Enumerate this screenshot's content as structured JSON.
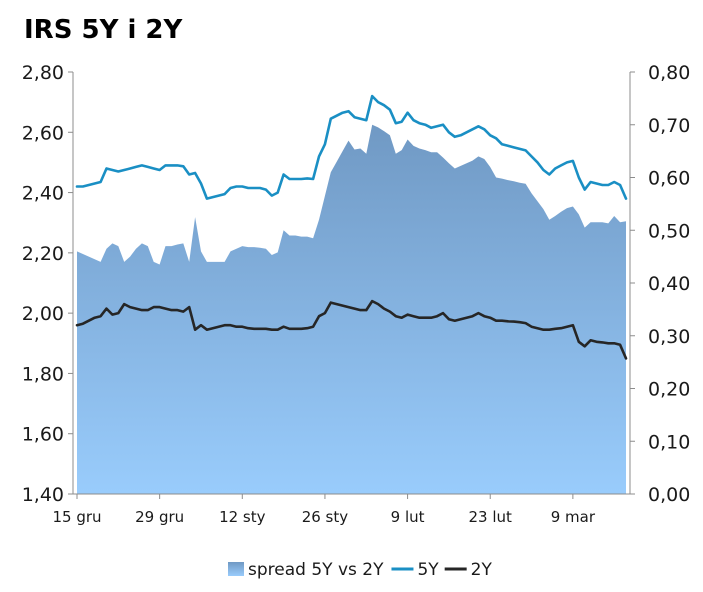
{
  "chart_data": {
    "type": "line",
    "title": "IRS 5Y i 2Y",
    "x_tick_labels": [
      "15 gru",
      "29 gru",
      "12 sty",
      "26 sty",
      "9 lut",
      "23 lut",
      "9 mar"
    ],
    "y_left": {
      "range": [
        1.4,
        2.8
      ],
      "step": 0.2,
      "tick_labels": [
        "1,40",
        "1,60",
        "1,80",
        "2,00",
        "2,20",
        "2,40",
        "2,60",
        "2,80"
      ]
    },
    "y_right": {
      "range": [
        0.0,
        0.8
      ],
      "step": 0.1,
      "tick_labels": [
        "0,00",
        "0,10",
        "0,20",
        "0,30",
        "0,40",
        "0,50",
        "0,60",
        "0,70",
        "0,80"
      ]
    },
    "grid": false,
    "legend_position": "bottom",
    "series": [
      {
        "name": "spread 5Y vs 2Y",
        "kind": "area",
        "axis": "right",
        "color": "#7099c4",
        "gradient_bottom": "#99ccfc",
        "values": [
          0.46,
          0.455,
          0.45,
          0.445,
          0.44,
          0.465,
          0.475,
          0.47,
          0.44,
          0.45,
          0.465,
          0.475,
          0.47,
          0.44,
          0.435,
          0.47,
          0.47,
          0.473,
          0.475,
          0.44,
          0.525,
          0.46,
          0.44,
          0.44,
          0.44,
          0.44,
          0.46,
          0.465,
          0.47,
          0.468,
          0.468,
          0.467,
          0.465,
          0.453,
          0.458,
          0.5,
          0.49,
          0.49,
          0.488,
          0.488,
          0.485,
          0.52,
          0.565,
          0.61,
          0.63,
          0.65,
          0.67,
          0.653,
          0.655,
          0.645,
          0.7,
          0.695,
          0.688,
          0.68,
          0.645,
          0.652,
          0.672,
          0.66,
          0.655,
          0.652,
          0.648,
          0.648,
          0.638,
          0.627,
          0.617,
          0.622,
          0.627,
          0.632,
          0.64,
          0.635,
          0.62,
          0.6,
          0.598,
          0.595,
          0.593,
          0.59,
          0.588,
          0.57,
          0.555,
          0.54,
          0.52,
          0.527,
          0.535,
          0.542,
          0.545,
          0.53,
          0.505,
          0.515,
          0.515,
          0.515,
          0.513,
          0.527,
          0.515,
          0.517
        ]
      },
      {
        "name": "5Y",
        "kind": "line",
        "axis": "left",
        "color": "#1a8fc4",
        "values": [
          2.42,
          2.42,
          2.425,
          2.43,
          2.435,
          2.48,
          2.475,
          2.47,
          2.475,
          2.48,
          2.485,
          2.49,
          2.485,
          2.48,
          2.475,
          2.49,
          2.49,
          2.49,
          2.487,
          2.46,
          2.465,
          2.43,
          2.38,
          2.385,
          2.39,
          2.395,
          2.415,
          2.42,
          2.42,
          2.415,
          2.415,
          2.415,
          2.41,
          2.39,
          2.4,
          2.46,
          2.445,
          2.445,
          2.445,
          2.447,
          2.445,
          2.52,
          2.56,
          2.645,
          2.655,
          2.665,
          2.67,
          2.65,
          2.645,
          2.64,
          2.72,
          2.7,
          2.69,
          2.675,
          2.63,
          2.635,
          2.665,
          2.64,
          2.63,
          2.625,
          2.615,
          2.62,
          2.625,
          2.6,
          2.585,
          2.59,
          2.6,
          2.61,
          2.62,
          2.61,
          2.59,
          2.58,
          2.56,
          2.555,
          2.55,
          2.545,
          2.54,
          2.52,
          2.5,
          2.475,
          2.46,
          2.48,
          2.49,
          2.5,
          2.505,
          2.45,
          2.41,
          2.435,
          2.43,
          2.425,
          2.425,
          2.435,
          2.425,
          2.38
        ]
      },
      {
        "name": "2Y",
        "kind": "line",
        "axis": "left",
        "color": "#262626",
        "values": [
          1.96,
          1.965,
          1.975,
          1.985,
          1.99,
          2.015,
          1.995,
          2.0,
          2.03,
          2.02,
          2.015,
          2.01,
          2.01,
          2.02,
          2.02,
          2.015,
          2.01,
          2.01,
          2.005,
          2.02,
          1.945,
          1.96,
          1.945,
          1.95,
          1.955,
          1.96,
          1.96,
          1.955,
          1.955,
          1.95,
          1.948,
          1.948,
          1.948,
          1.945,
          1.945,
          1.955,
          1.948,
          1.948,
          1.948,
          1.95,
          1.955,
          1.99,
          2.0,
          2.035,
          2.03,
          2.025,
          2.02,
          2.015,
          2.01,
          2.01,
          2.04,
          2.03,
          2.015,
          2.005,
          1.99,
          1.985,
          1.995,
          1.99,
          1.985,
          1.985,
          1.985,
          1.99,
          2.0,
          1.98,
          1.975,
          1.98,
          1.985,
          1.99,
          2.0,
          1.99,
          1.985,
          1.975,
          1.975,
          1.973,
          1.972,
          1.97,
          1.967,
          1.955,
          1.95,
          1.945,
          1.945,
          1.948,
          1.95,
          1.955,
          1.96,
          1.905,
          1.89,
          1.91,
          1.905,
          1.903,
          1.9,
          1.9,
          1.895,
          1.85
        ]
      }
    ]
  }
}
